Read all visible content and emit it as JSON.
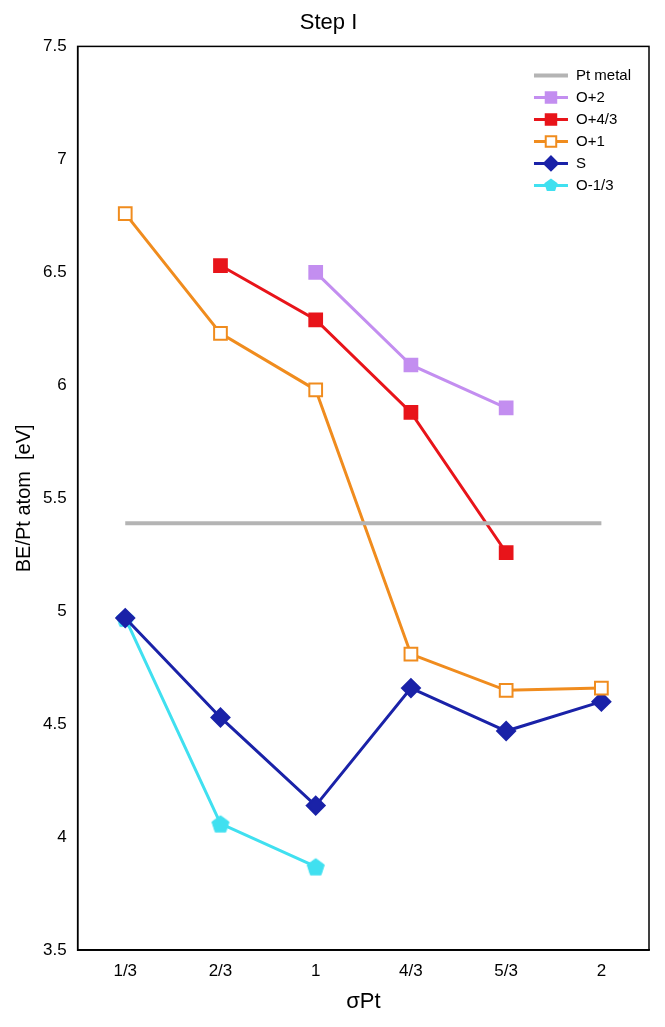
{
  "chart_data": {
    "type": "line",
    "title": "Step I",
    "x_label": "σPt",
    "y_label": "BE/Pt atom  [eV]",
    "categories": [
      "1/3",
      "2/3",
      "1",
      "4/3",
      "5/3",
      "2"
    ],
    "ylim": [
      3.5,
      7.5
    ],
    "yticks": [
      3.5,
      4,
      4.5,
      5,
      5.5,
      6,
      6.5,
      7,
      7.5
    ],
    "grid": false,
    "legend": "upper right",
    "series": [
      {
        "name": "Pt metal",
        "color": "#b4b4b4",
        "marker": "none",
        "line_style": "solid",
        "values": [
          5.39,
          5.39,
          5.39,
          5.39,
          5.39,
          5.39
        ]
      },
      {
        "name": "O+2",
        "color": "#c38ef0",
        "marker": "square",
        "line_style": "solid",
        "values": [
          null,
          null,
          6.5,
          6.09,
          5.9,
          null
        ]
      },
      {
        "name": "O+4/3",
        "color": "#e8141a",
        "marker": "square",
        "line_style": "solid",
        "values": [
          null,
          6.53,
          6.29,
          5.88,
          5.26,
          null
        ]
      },
      {
        "name": "O+1",
        "color": "#f08c1e",
        "marker": "open_square",
        "line_style": "solid",
        "values": [
          6.76,
          6.23,
          5.98,
          4.81,
          4.65,
          4.66
        ]
      },
      {
        "name": "S",
        "color": "#1a22a8",
        "marker": "diamond",
        "line_style": "solid",
        "values": [
          4.97,
          4.53,
          4.14,
          4.66,
          4.47,
          4.6
        ]
      },
      {
        "name": "O-1/3",
        "color": "#40e0f0",
        "marker": "pentagon",
        "line_style": "solid",
        "values": [
          4.97,
          4.06,
          3.87,
          null,
          null,
          null
        ]
      }
    ]
  }
}
